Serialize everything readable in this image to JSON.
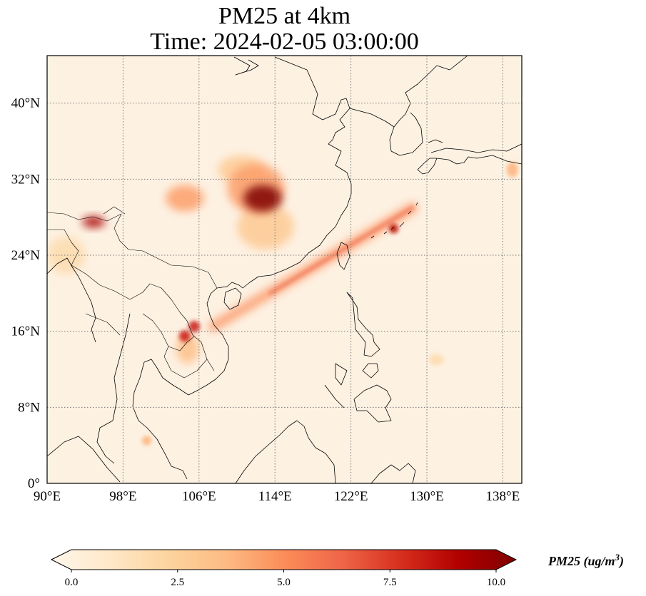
{
  "title_line1": "PM25 at 4km",
  "title_line2": "Time: 2024-02-05 03:00:00",
  "map": {
    "projection": "PlateCarree",
    "lon_range": [
      90,
      140
    ],
    "lat_range": [
      0,
      45
    ],
    "gridlines": "dotted gray",
    "lon_ticks": [
      {
        "value": 90,
        "label": "90°E"
      },
      {
        "value": 98,
        "label": "98°E"
      },
      {
        "value": 106,
        "label": "106°E"
      },
      {
        "value": 114,
        "label": "114°E"
      },
      {
        "value": 122,
        "label": "122°E"
      },
      {
        "value": 130,
        "label": "130°E"
      },
      {
        "value": 138,
        "label": "138°E"
      }
    ],
    "lat_ticks": [
      {
        "value": 0,
        "label": "0°"
      },
      {
        "value": 8,
        "label": "8°N"
      },
      {
        "value": 16,
        "label": "16°N"
      },
      {
        "value": 24,
        "label": "24°N"
      },
      {
        "value": 32,
        "label": "32°N"
      },
      {
        "value": 40,
        "label": "40°N"
      }
    ],
    "background_color": "#fdf1e2",
    "plumes": [
      {
        "lon": 112.7,
        "lat": 30.0,
        "rx": 2.0,
        "ry": 1.4,
        "value": 10.0
      },
      {
        "lon": 112.0,
        "lat": 31.0,
        "rx": 3.0,
        "ry": 2.6,
        "value": 4.5
      },
      {
        "lon": 110.5,
        "lat": 33.0,
        "rx": 2.5,
        "ry": 1.5,
        "value": 3.0
      },
      {
        "lon": 113.0,
        "lat": 27.0,
        "rx": 3.0,
        "ry": 2.4,
        "value": 3.0
      },
      {
        "lon": 104.5,
        "lat": 30.0,
        "rx": 2.0,
        "ry": 1.4,
        "value": 4.5
      },
      {
        "lon": 94.9,
        "lat": 27.5,
        "rx": 1.2,
        "ry": 0.6,
        "value": 9.0
      },
      {
        "lon": 104.5,
        "lat": 15.5,
        "rx": 0.6,
        "ry": 0.6,
        "value": 8.0
      },
      {
        "lon": 105.5,
        "lat": 16.5,
        "rx": 0.6,
        "ry": 0.6,
        "value": 8.0
      },
      {
        "lon": 104.8,
        "lat": 14.2,
        "rx": 1.2,
        "ry": 1.6,
        "value": 3.5
      },
      {
        "lon": 126.5,
        "lat": 26.8,
        "rx": 0.5,
        "ry": 0.5,
        "value": 8.5
      },
      {
        "lon": 139.0,
        "lat": 33.0,
        "rx": 0.6,
        "ry": 0.8,
        "value": 4.0
      },
      {
        "lon": 100.5,
        "lat": 4.5,
        "rx": 0.5,
        "ry": 0.5,
        "value": 4.0
      },
      {
        "lon": 131.0,
        "lat": 13.0,
        "rx": 0.8,
        "ry": 0.6,
        "value": 2.0
      },
      {
        "lon": 92.0,
        "lat": 24.0,
        "rx": 2.0,
        "ry": 2.0,
        "value": 2.0
      }
    ],
    "plume_band": {
      "from": [
        107.5,
        16.5
      ],
      "to": [
        128.5,
        29.0
      ],
      "value": 5.0
    },
    "coastline_color": "#000000"
  },
  "colorbar": {
    "colormap": "OrRd",
    "vmin": 0.0,
    "vmax": 10.0,
    "extend": "both",
    "ticks": [
      {
        "value": 0.0,
        "label": "0.0"
      },
      {
        "value": 2.5,
        "label": "2.5"
      },
      {
        "value": 5.0,
        "label": "5.0"
      },
      {
        "value": 7.5,
        "label": "7.5"
      },
      {
        "value": 10.0,
        "label": "10.0"
      }
    ],
    "label_text": "PM25 (ug/m",
    "label_superscript": "3",
    "label_close": ")",
    "colors": [
      "#fff7ec",
      "#fee8c8",
      "#fdd49e",
      "#fdbb84",
      "#fc8d59",
      "#ef6548",
      "#d7301f",
      "#b30000",
      "#7f0000"
    ]
  }
}
